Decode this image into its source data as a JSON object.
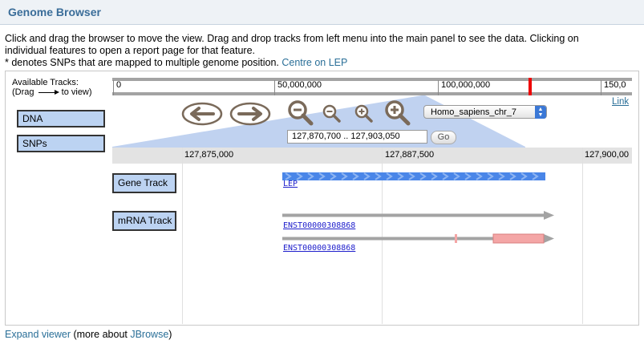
{
  "header": {
    "title": "Genome Browser"
  },
  "intro": {
    "line1": "Click and drag the browser to move the view. Drag and drop tracks from left menu into the main panel to see the data. Clicking on",
    "line2": "individual features to open a report page for that feature.",
    "line3": "* denotes SNPs that are mapped to multiple genome position.",
    "centre_link": "Centre on LEP"
  },
  "sidebar": {
    "title": "Available Tracks:",
    "hint_left": "(Drag",
    "hint_right": "to view)",
    "tracks": [
      "DNA",
      "SNPs"
    ]
  },
  "overview": {
    "ticks": [
      "0",
      "50,000,000",
      "100,000,000",
      "150,0"
    ],
    "link": "Link"
  },
  "nav": {
    "back_icon": "left-arrow-icon",
    "forward_icon": "right-arrow-icon",
    "zoom_out_big_icon": "zoom-out-large-icon",
    "zoom_out_small_icon": "zoom-out-small-icon",
    "zoom_in_small_icon": "zoom-in-small-icon",
    "zoom_in_big_icon": "zoom-in-large-icon"
  },
  "chromosome": {
    "selected": "Homo_sapiens_chr_7"
  },
  "location": {
    "value": "127,870,700 .. 127,903,050",
    "go_label": "Go"
  },
  "ruler": {
    "labels": [
      "127,875,000",
      "127,887,500",
      "127,900,00"
    ]
  },
  "tracks": {
    "gene": {
      "label": "Gene Track",
      "feature": "LEP"
    },
    "mrna": {
      "label": "mRNA Track",
      "feature1": "ENST00000308868",
      "feature2": "ENST00000308868"
    }
  },
  "footer": {
    "expand_link": "Expand viewer",
    "middle": " (more about ",
    "jbrowse_link": "JBrowse",
    "end": ")"
  },
  "colors": {
    "accent": "#2a6f98",
    "track_button": "#bcd3f2",
    "gene": "#4a86e8",
    "utr": "#f4a6a6",
    "marker": "#e00000"
  }
}
